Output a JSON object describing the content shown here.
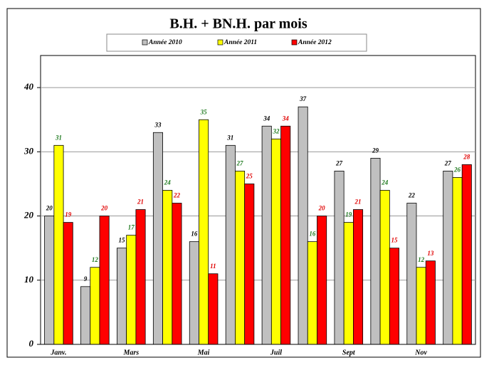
{
  "chart_data": {
    "type": "bar",
    "title": "B.H. + BN.H. par mois",
    "categories": [
      "Janv.",
      null,
      "Mars",
      null,
      "Mai",
      null,
      "Juil",
      null,
      "Sept",
      null,
      "Nov",
      null
    ],
    "series": [
      {
        "name": "Année 2010",
        "color": "#c0c0c0",
        "label_color": "#000000",
        "values": [
          20,
          9,
          15,
          33,
          16,
          31,
          34,
          37,
          27,
          29,
          22,
          27
        ]
      },
      {
        "name": "Année 2011",
        "color": "#ffff00",
        "label_color": "#1f7a1f",
        "values": [
          31,
          12,
          17,
          24,
          35,
          27,
          32,
          16,
          19,
          24,
          12,
          26
        ]
      },
      {
        "name": "Année 2012",
        "color": "#ff0000",
        "label_color": "#e00000",
        "values": [
          19,
          20,
          21,
          22,
          11,
          25,
          34,
          20,
          21,
          15,
          13,
          28
        ]
      }
    ],
    "ylim": [
      0,
      45
    ],
    "yticks": [
      0,
      10,
      20,
      30,
      40
    ],
    "grid": true,
    "legend": "top"
  }
}
